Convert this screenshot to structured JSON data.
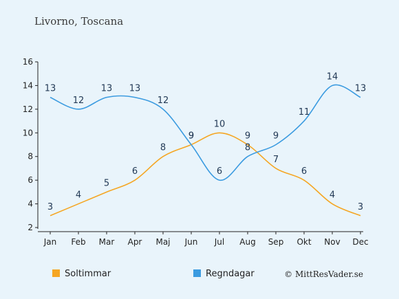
{
  "title": "Livorno, Toscana",
  "credit": "© MittResVader.se",
  "colors": {
    "sun": "#f5a623",
    "rain": "#3b9be0",
    "axis": "#222222"
  },
  "chart_data": {
    "type": "line",
    "categories": [
      "Jan",
      "Feb",
      "Mar",
      "Apr",
      "Maj",
      "Jun",
      "Jul",
      "Aug",
      "Sep",
      "Okt",
      "Nov",
      "Dec"
    ],
    "ylim": [
      2,
      16
    ],
    "yticks": [
      2,
      4,
      6,
      8,
      10,
      12,
      14,
      16
    ],
    "grid": false,
    "legend_position": "bottom-left",
    "series": [
      {
        "name": "Soltimmar",
        "color": "#f5a623",
        "values": [
          3,
          4,
          5,
          6,
          8,
          9,
          10,
          9,
          7,
          6,
          4,
          3
        ]
      },
      {
        "name": "Regndagar",
        "color": "#3b9be0",
        "values": [
          13,
          12,
          13,
          13,
          12,
          9,
          6,
          8,
          9,
          11,
          14,
          13
        ]
      }
    ]
  }
}
